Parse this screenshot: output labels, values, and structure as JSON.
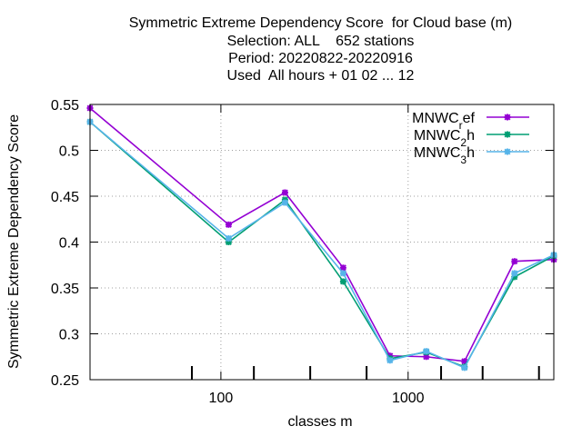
{
  "chart_data": {
    "type": "line",
    "title_lines": [
      "Symmetric Extreme Dependency Score  for Cloud base (m)",
      "Selection: ALL    652 stations",
      "Period: 20220822-20220916",
      "Used  All hours + 01 02 ... 12"
    ],
    "xlabel": "classes m",
    "ylabel": "Symmetric Extreme Dependency Score",
    "x_scale": "log",
    "xlim": [
      20,
      6000
    ],
    "ylim": [
      0.25,
      0.55
    ],
    "x_ticks": [
      100,
      1000
    ],
    "x_tick_labels": [
      "100",
      "1000"
    ],
    "y_ticks": [
      0.25,
      0.3,
      0.35,
      0.4,
      0.45,
      0.5,
      0.55
    ],
    "y_tick_labels": [
      "0.25",
      "0.3",
      "0.35",
      "0.4",
      "0.45",
      "0.5",
      "0.55"
    ],
    "class_marks": [
      70,
      150,
      300,
      600,
      1500,
      2500,
      5000
    ],
    "grid": true,
    "legend_position": "top-right",
    "x": [
      20,
      110,
      220,
      450,
      800,
      1250,
      2000,
      3700,
      6000
    ],
    "series": [
      {
        "name": "MNWC_ref",
        "name_main": "MNWC",
        "name_sub": "r",
        "name_tail": "ef",
        "color": "#9400d3",
        "values": [
          0.546,
          0.419,
          0.454,
          0.372,
          0.276,
          0.275,
          0.27,
          0.379,
          0.381
        ]
      },
      {
        "name": "MNWC_2h",
        "name_main": "MNWC",
        "name_sub": "2",
        "name_tail": "h",
        "color": "#009e73",
        "values": [
          0.531,
          0.4,
          0.446,
          0.357,
          0.273,
          0.28,
          0.264,
          0.362,
          0.385
        ]
      },
      {
        "name": "MNWC_3h",
        "name_main": "MNWC",
        "name_sub": "3",
        "name_tail": "h",
        "color": "#56b4e9",
        "values": [
          0.531,
          0.404,
          0.443,
          0.366,
          0.271,
          0.281,
          0.263,
          0.366,
          0.386
        ]
      }
    ]
  }
}
